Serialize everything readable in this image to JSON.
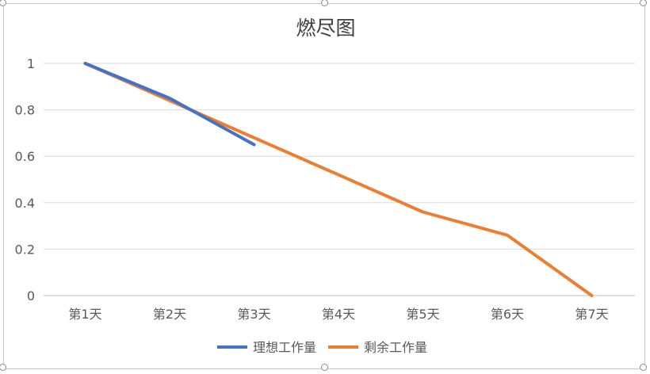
{
  "chart_data": {
    "type": "line",
    "title": "燃尽图",
    "categories": [
      "第1天",
      "第2天",
      "第3天",
      "第4天",
      "第5天",
      "第6天",
      "第7天"
    ],
    "ylim": [
      0,
      1
    ],
    "yticks": [
      "0",
      "0.2",
      "0.4",
      "0.6",
      "0.8",
      "1"
    ],
    "ytick_values": [
      0,
      0.2,
      0.4,
      0.6,
      0.8,
      1
    ],
    "grid": true,
    "legend_position": "bottom",
    "series": [
      {
        "name": "理想工作量",
        "color": "#4472c4",
        "values": [
          1,
          0.85,
          0.65,
          null,
          null,
          null,
          null
        ]
      },
      {
        "name": "剩余工作量",
        "color": "#ed7d31",
        "values": [
          1,
          0.84,
          0.68,
          0.52,
          0.36,
          0.26,
          0
        ]
      }
    ]
  }
}
